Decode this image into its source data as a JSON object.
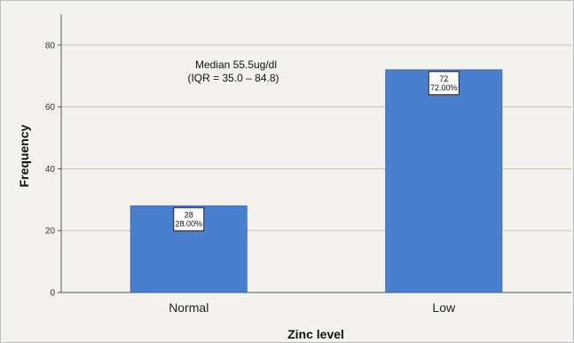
{
  "chart_data": {
    "type": "bar",
    "categories": [
      "Normal",
      "Low"
    ],
    "values": [
      28,
      72
    ],
    "data_labels": [
      [
        "28",
        "28.00%"
      ],
      [
        "72",
        "72.00%"
      ]
    ],
    "title": "",
    "xlabel": "Zinc level",
    "ylabel": "Frequency",
    "ylim": [
      0,
      90
    ],
    "yticks": [
      0,
      20,
      40,
      60,
      80
    ],
    "grid": true,
    "annotation": [
      "Median 55.5ug/dl",
      "(IQR = 35.0 – 84.8)"
    ],
    "colors": {
      "bar": "#4a7fd0",
      "bar_edge": "#3a6ab8",
      "grid": "#c9c2b5",
      "background": "#f4f2ee"
    }
  }
}
